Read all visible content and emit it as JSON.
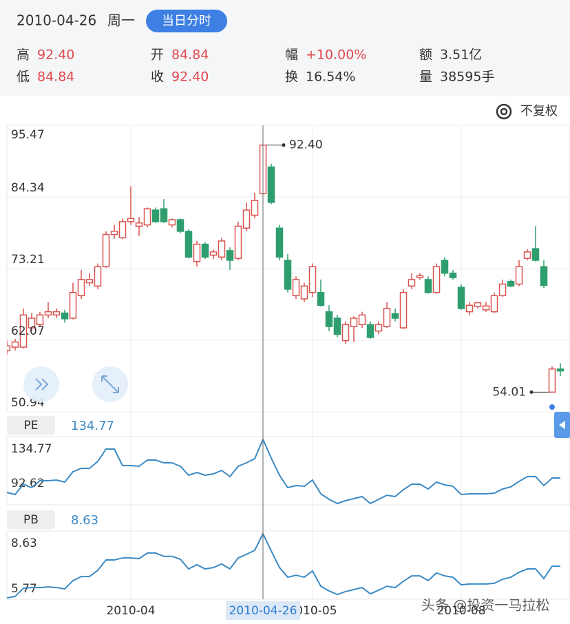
{
  "header": {
    "date": "2010-04-26",
    "weekday": "周一",
    "button": "当日分时",
    "adjust": "不复权",
    "stats": [
      {
        "label": "高",
        "value": "92.40",
        "color": "#e0474b"
      },
      {
        "label": "开",
        "value": "84.84",
        "color": "#e0474b"
      },
      {
        "label": "幅",
        "value": "+10.00%",
        "color": "#e0474b"
      },
      {
        "label": "额",
        "value": "3.51亿",
        "color": "#333333"
      },
      {
        "label": "低",
        "value": "84.84",
        "color": "#e0474b"
      },
      {
        "label": "收",
        "value": "92.40",
        "color": "#e0474b"
      },
      {
        "label": "换",
        "value": "16.54%",
        "color": "#333333"
      },
      {
        "label": "量",
        "value": "38595手",
        "color": "#333333"
      }
    ]
  },
  "watermark": "头条 @投资一马拉松",
  "chart_data": [
    {
      "type": "candlestick",
      "categories": [
        null,
        null,
        null,
        null,
        null,
        null,
        null,
        null,
        null,
        null,
        null,
        null,
        null,
        null,
        null,
        "2010-04",
        null,
        null,
        null,
        null,
        null,
        null,
        null,
        null,
        null,
        null,
        null,
        null,
        null,
        null,
        null,
        "2010-04-26",
        null,
        null,
        null,
        null,
        null,
        "2010-05",
        null,
        null,
        null,
        null,
        null,
        null,
        null,
        null,
        null,
        null,
        null,
        null,
        null,
        null,
        null,
        null,
        null,
        "2010-08",
        null,
        null,
        null,
        null,
        null,
        null,
        null,
        null,
        null,
        null,
        null,
        null
      ],
      "open": [
        60.5,
        61.0,
        61.0,
        64.0,
        64.5,
        66.0,
        66.0,
        66.3,
        65.5,
        69.0,
        71.0,
        70.5,
        73.5,
        78.5,
        78.0,
        80.5,
        79.8,
        80.0,
        82.3,
        82.5,
        80.0,
        80.8,
        79.0,
        74.3,
        77.0,
        75.3,
        75.0,
        76.0,
        74.8,
        79.5,
        81.5,
        84.84,
        89.0,
        79.5,
        74.5,
        69.0,
        68.5,
        69.5,
        69.5,
        66.5,
        65.5,
        62.0,
        64.2,
        64.5,
        64.5,
        63.5,
        64.2,
        66.2,
        64.0,
        70.5,
        71.8,
        71.5,
        69.5,
        74.5,
        72.5,
        70.3,
        66.5,
        67.3,
        66.8,
        66.5,
        69.0,
        71.2,
        70.8,
        74.8,
        76.3,
        73.5,
        54.01,
        57.6
      ],
      "high": [
        62.0,
        62.3,
        67.0,
        66.3,
        66.5,
        68.0,
        67.0,
        66.8,
        71.0,
        73.0,
        72.5,
        74.0,
        79.0,
        80.0,
        81.0,
        86.0,
        81.2,
        82.7,
        82.7,
        84.0,
        81.0,
        81.0,
        79.3,
        77.5,
        77.3,
        76.2,
        78.0,
        76.5,
        80.5,
        83.5,
        85.0,
        92.4,
        89.5,
        80.0,
        75.5,
        72.0,
        71.0,
        74.0,
        71.5,
        67.5,
        66.0,
        65.0,
        65.8,
        66.5,
        65.0,
        65.0,
        68.0,
        67.0,
        70.0,
        72.5,
        72.5,
        72.0,
        74.0,
        75.0,
        73.0,
        70.8,
        68.0,
        68.0,
        68.0,
        69.5,
        71.5,
        71.5,
        74.5,
        76.2,
        79.8,
        74.5,
        58.0,
        58.5
      ],
      "low": [
        59.9,
        60.5,
        60.8,
        63.5,
        64.2,
        65.5,
        65.5,
        64.8,
        65.3,
        68.5,
        70.5,
        70.0,
        73.3,
        77.8,
        77.8,
        80.0,
        78.3,
        79.6,
        80.3,
        80.3,
        79.6,
        78.7,
        74.8,
        73.5,
        74.7,
        74.7,
        74.5,
        73.0,
        74.5,
        79.0,
        81.0,
        84.84,
        83.2,
        74.5,
        69.5,
        68.5,
        68.0,
        68.8,
        67.3,
        63.5,
        62.5,
        61.5,
        61.8,
        64.0,
        62.3,
        63.0,
        64.0,
        65.0,
        63.8,
        70.0,
        71.5,
        69.3,
        69.3,
        72.0,
        71.5,
        66.8,
        66.0,
        67.0,
        66.5,
        66.3,
        68.8,
        70.3,
        70.5,
        74.5,
        74.3,
        70.2,
        54.01,
        56.5
      ],
      "close": [
        61.2,
        61.8,
        66.0,
        65.5,
        66.0,
        66.5,
        66.5,
        65.4,
        69.5,
        71.5,
        71.5,
        73.5,
        78.5,
        79.0,
        80.5,
        81.0,
        80.3,
        82.5,
        80.5,
        80.5,
        80.8,
        79.0,
        75.0,
        77.0,
        75.0,
        75.8,
        77.5,
        74.5,
        79.8,
        82.3,
        83.8,
        92.4,
        83.5,
        75.0,
        70.0,
        71.5,
        70.5,
        73.5,
        67.5,
        64.2,
        63.0,
        64.5,
        65.5,
        66.0,
        62.5,
        64.5,
        67.0,
        65.5,
        69.5,
        71.5,
        72.1,
        69.5,
        73.5,
        72.5,
        71.8,
        67.0,
        67.5,
        67.9,
        67.4,
        69.0,
        70.8,
        70.5,
        73.5,
        75.8,
        74.5,
        70.6,
        57.6,
        57.3
      ],
      "up_color": "#d9534f",
      "down_color": "#2f9e6f",
      "ylim": [
        50.94,
        95.47
      ],
      "yticks": [
        95.47,
        84.34,
        73.21,
        62.07,
        50.94
      ],
      "grid": true,
      "annotations": [
        {
          "text": "92.40",
          "value": 92.4
        },
        {
          "text": "54.01",
          "value": 54.01
        }
      ]
    },
    {
      "type": "line",
      "title": "PE",
      "color": "#3b8ac4",
      "ylim": [
        82.77,
        136.96
      ],
      "yticks": [
        134.77,
        92.62
      ],
      "values": [
        92.62,
        90.98,
        99.19,
        96.45,
        101.93,
        101.93,
        102.47,
        100.83,
        109.04,
        111.78,
        111.78,
        117.25,
        127.11,
        127.11,
        113.97,
        113.97,
        113.42,
        118.35,
        118.35,
        116.16,
        116.16,
        113.42,
        106.31,
        108.49,
        106.31,
        107.4,
        110.14,
        105.21,
        113.42,
        116.16,
        119.44,
        134.77,
        119.99,
        106.31,
        96.45,
        98.09,
        97.55,
        102.47,
        91.53,
        87.15,
        83.86,
        86.05,
        87.69,
        89.34,
        83.86,
        87.15,
        90.43,
        89.34,
        94.81,
        99.19,
        99.19,
        95.36,
        100.83,
        98.64,
        97.55,
        90.98,
        91.53,
        91.53,
        91.53,
        92.07,
        95.36,
        97.0,
        101.38,
        105.21,
        105.21,
        98.09,
        104.12,
        104.12
      ]
    },
    {
      "type": "line",
      "title": "PB",
      "color": "#3b8ac4",
      "ylim": [
        5.71,
        8.75
      ],
      "yticks": [
        8.63,
        5.77
      ],
      "values": [
        5.77,
        5.83,
        6.2,
        6.23,
        6.23,
        6.26,
        6.23,
        6.17,
        6.54,
        6.72,
        6.72,
        7.0,
        7.46,
        7.46,
        7.55,
        7.55,
        7.52,
        7.77,
        7.77,
        7.62,
        7.62,
        7.49,
        7.06,
        7.25,
        7.06,
        7.12,
        7.28,
        7.06,
        7.55,
        7.71,
        7.89,
        8.63,
        7.86,
        7.12,
        6.69,
        6.78,
        6.69,
        6.97,
        6.29,
        6.08,
        5.92,
        6.05,
        6.14,
        6.23,
        5.95,
        6.11,
        6.29,
        6.23,
        6.51,
        6.75,
        6.75,
        6.54,
        6.88,
        6.75,
        6.69,
        6.35,
        6.39,
        6.39,
        6.39,
        6.42,
        6.6,
        6.69,
        6.91,
        7.06,
        7.06,
        6.63,
        7.18,
        7.18
      ]
    }
  ]
}
